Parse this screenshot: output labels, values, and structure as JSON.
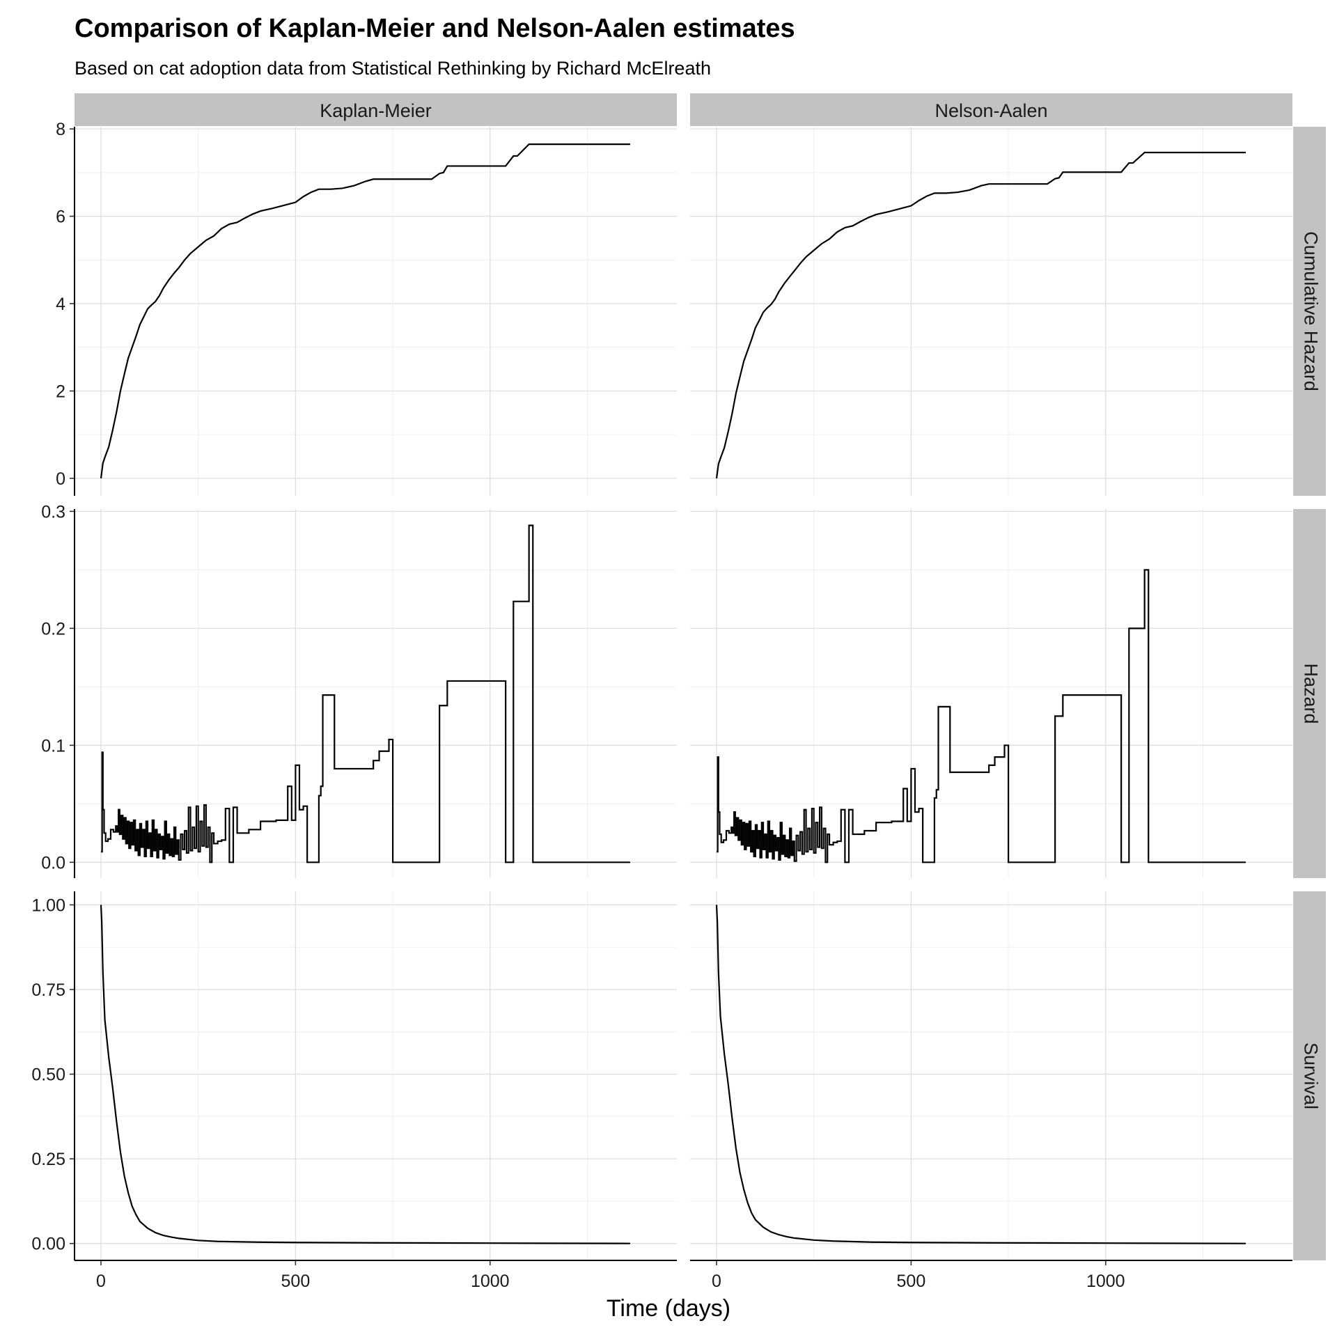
{
  "chart_data": {
    "type": "line",
    "title": "Comparison of Kaplan-Meier and Nelson-Aalen estimates",
    "subtitle": "Based on cat adoption data from Statistical Rethinking by Richard McElreath",
    "xlabel": "Time (days)",
    "ylabel": "",
    "columns": [
      "Kaplan-Meier",
      "Nelson-Aalen"
    ],
    "rows": [
      {
        "label": "Cumulative Hazard",
        "ylim": [
          -0.4,
          8.05
        ],
        "yticks": [
          0,
          2,
          4,
          6,
          8
        ],
        "ytick_labels": [
          "0",
          "2",
          "4",
          "6",
          "8"
        ]
      },
      {
        "label": "Hazard",
        "ylim": [
          -0.0135,
          0.302
        ],
        "yticks": [
          0,
          0.1,
          0.2,
          0.3
        ],
        "ytick_labels": [
          "0.0",
          "0.1",
          "0.2",
          "0.3"
        ]
      },
      {
        "label": "Survival",
        "ylim": [
          -0.05,
          1.04
        ],
        "yticks": [
          0,
          0.25,
          0.5,
          0.75,
          1.0
        ],
        "ytick_labels": [
          "0.00",
          "0.25",
          "0.50",
          "0.75",
          "1.00"
        ]
      }
    ],
    "xlim": [
      -68,
      1480
    ],
    "xticks": [
      0,
      500,
      1000
    ],
    "xtick_labels": [
      "0",
      "500",
      "1000"
    ],
    "grid": true,
    "series": [
      {
        "panel": "Kaplan-Meier / Cumulative Hazard",
        "step": false,
        "x": [
          0,
          5,
          10,
          20,
          30,
          40,
          50,
          60,
          70,
          80,
          90,
          100,
          110,
          120,
          130,
          140,
          150,
          160,
          175,
          190,
          200,
          215,
          230,
          250,
          270,
          290,
          310,
          330,
          350,
          370,
          390,
          410,
          440,
          470,
          500,
          520,
          540,
          560,
          590,
          620,
          650,
          680,
          700,
          720,
          750,
          800,
          850,
          870,
          880,
          890,
          900,
          1000,
          1040,
          1060,
          1070,
          1100,
          1110,
          1250,
          1360
        ],
        "y": [
          0,
          0.35,
          0.48,
          0.72,
          1.1,
          1.52,
          2.0,
          2.38,
          2.75,
          3.0,
          3.25,
          3.52,
          3.7,
          3.88,
          3.97,
          4.05,
          4.18,
          4.35,
          4.55,
          4.72,
          4.82,
          5.0,
          5.15,
          5.3,
          5.45,
          5.55,
          5.72,
          5.82,
          5.86,
          5.96,
          6.05,
          6.12,
          6.18,
          6.25,
          6.32,
          6.45,
          6.55,
          6.62,
          6.62,
          6.64,
          6.7,
          6.8,
          6.85,
          6.85,
          6.85,
          6.85,
          6.85,
          6.98,
          7.0,
          7.15,
          7.15,
          7.15,
          7.15,
          7.38,
          7.38,
          7.65,
          7.65,
          7.65,
          7.65
        ]
      },
      {
        "panel": "Nelson-Aalen / Cumulative Hazard",
        "step": false,
        "x": [
          0,
          5,
          10,
          20,
          30,
          40,
          50,
          60,
          70,
          80,
          90,
          100,
          110,
          120,
          130,
          140,
          150,
          160,
          175,
          190,
          200,
          215,
          230,
          250,
          270,
          290,
          310,
          330,
          350,
          370,
          390,
          410,
          440,
          470,
          500,
          520,
          540,
          560,
          590,
          620,
          650,
          680,
          700,
          720,
          750,
          800,
          850,
          870,
          880,
          890,
          900,
          1000,
          1040,
          1060,
          1070,
          1100,
          1110,
          1250,
          1360
        ],
        "y": [
          0,
          0.33,
          0.46,
          0.7,
          1.07,
          1.48,
          1.95,
          2.32,
          2.68,
          2.93,
          3.18,
          3.45,
          3.62,
          3.8,
          3.9,
          3.98,
          4.1,
          4.27,
          4.47,
          4.64,
          4.75,
          4.92,
          5.07,
          5.22,
          5.37,
          5.48,
          5.64,
          5.74,
          5.78,
          5.88,
          5.97,
          6.04,
          6.1,
          6.17,
          6.24,
          6.36,
          6.46,
          6.53,
          6.53,
          6.55,
          6.6,
          6.7,
          6.74,
          6.74,
          6.74,
          6.74,
          6.74,
          6.86,
          6.88,
          7.01,
          7.01,
          7.01,
          7.01,
          7.22,
          7.22,
          7.46,
          7.46,
          7.46,
          7.46
        ]
      },
      {
        "panel": "Kaplan-Meier / Hazard",
        "step": true,
        "x": [
          0,
          3,
          5,
          8,
          12,
          18,
          25,
          32,
          38,
          42,
          45,
          48,
          52,
          56,
          60,
          64,
          68,
          72,
          76,
          80,
          84,
          88,
          92,
          96,
          100,
          104,
          108,
          112,
          116,
          120,
          124,
          128,
          132,
          136,
          140,
          144,
          148,
          152,
          156,
          160,
          164,
          168,
          172,
          176,
          180,
          184,
          188,
          192,
          196,
          200,
          205,
          210,
          215,
          220,
          225,
          230,
          235,
          240,
          245,
          250,
          255,
          260,
          265,
          270,
          275,
          280,
          285,
          290,
          300,
          310,
          320,
          330,
          340,
          350,
          380,
          410,
          450,
          480,
          490,
          500,
          510,
          520,
          530,
          560,
          565,
          570,
          600,
          700,
          715,
          740,
          750,
          870,
          890,
          1040,
          1060,
          1100,
          1110,
          1360
        ],
        "y": [
          0.009,
          0.094,
          0.045,
          0.025,
          0.018,
          0.02,
          0.028,
          0.026,
          0.031,
          0.026,
          0.045,
          0.024,
          0.04,
          0.02,
          0.038,
          0.016,
          0.035,
          0.012,
          0.034,
          0.015,
          0.036,
          0.01,
          0.028,
          0.006,
          0.033,
          0.013,
          0.028,
          0.005,
          0.035,
          0.012,
          0.025,
          0.005,
          0.036,
          0.01,
          0.028,
          0.004,
          0.024,
          0.011,
          0.022,
          0.003,
          0.035,
          0.008,
          0.024,
          0.006,
          0.02,
          0.005,
          0.03,
          0.007,
          0.019,
          0.002,
          0.024,
          0.011,
          0.027,
          0.008,
          0.047,
          0.01,
          0.03,
          0.012,
          0.048,
          0.009,
          0.035,
          0.014,
          0.049,
          0.013,
          0.03,
          0.0,
          0.025,
          0.016,
          0.018,
          0.019,
          0.046,
          0.0,
          0.047,
          0.025,
          0.028,
          0.035,
          0.036,
          0.065,
          0.036,
          0.083,
          0.045,
          0.048,
          0.0,
          0.057,
          0.065,
          0.143,
          0.08,
          0.087,
          0.095,
          0.105,
          0.0,
          0.134,
          0.155,
          0.0,
          0.223,
          0.288,
          0.0,
          0.0
        ]
      },
      {
        "panel": "Nelson-Aalen / Hazard",
        "step": true,
        "x": [
          0,
          3,
          5,
          8,
          12,
          18,
          25,
          32,
          38,
          42,
          45,
          48,
          52,
          56,
          60,
          64,
          68,
          72,
          76,
          80,
          84,
          88,
          92,
          96,
          100,
          104,
          108,
          112,
          116,
          120,
          124,
          128,
          132,
          136,
          140,
          144,
          148,
          152,
          156,
          160,
          164,
          168,
          172,
          176,
          180,
          184,
          188,
          192,
          196,
          200,
          205,
          210,
          215,
          220,
          225,
          230,
          235,
          240,
          245,
          250,
          255,
          260,
          265,
          270,
          275,
          280,
          285,
          290,
          300,
          310,
          320,
          330,
          340,
          350,
          380,
          410,
          450,
          480,
          490,
          500,
          510,
          520,
          530,
          560,
          565,
          570,
          600,
          700,
          715,
          740,
          750,
          870,
          890,
          1040,
          1060,
          1100,
          1110,
          1360
        ],
        "y": [
          0.009,
          0.09,
          0.043,
          0.024,
          0.017,
          0.019,
          0.027,
          0.025,
          0.03,
          0.025,
          0.043,
          0.023,
          0.038,
          0.019,
          0.036,
          0.015,
          0.034,
          0.011,
          0.033,
          0.014,
          0.035,
          0.009,
          0.027,
          0.005,
          0.032,
          0.012,
          0.027,
          0.004,
          0.034,
          0.011,
          0.024,
          0.004,
          0.035,
          0.009,
          0.027,
          0.003,
          0.023,
          0.01,
          0.021,
          0.002,
          0.034,
          0.007,
          0.023,
          0.005,
          0.019,
          0.004,
          0.029,
          0.006,
          0.018,
          0.001,
          0.023,
          0.01,
          0.026,
          0.007,
          0.045,
          0.009,
          0.029,
          0.011,
          0.046,
          0.008,
          0.034,
          0.013,
          0.047,
          0.012,
          0.029,
          0.0,
          0.024,
          0.015,
          0.017,
          0.018,
          0.045,
          0.0,
          0.045,
          0.024,
          0.027,
          0.034,
          0.035,
          0.063,
          0.035,
          0.08,
          0.043,
          0.046,
          0.0,
          0.055,
          0.062,
          0.133,
          0.077,
          0.083,
          0.09,
          0.1,
          0.0,
          0.125,
          0.143,
          0.0,
          0.2,
          0.25,
          0.0,
          0.0
        ]
      },
      {
        "panel": "Kaplan-Meier / Survival",
        "step": false,
        "x": [
          0,
          2,
          5,
          10,
          20,
          30,
          40,
          50,
          60,
          70,
          80,
          90,
          100,
          120,
          140,
          160,
          180,
          200,
          250,
          300,
          400,
          500,
          700,
          1000,
          1360
        ],
        "y": [
          1.0,
          0.95,
          0.8,
          0.66,
          0.55,
          0.46,
          0.36,
          0.27,
          0.2,
          0.15,
          0.11,
          0.085,
          0.065,
          0.045,
          0.032,
          0.024,
          0.019,
          0.015,
          0.009,
          0.006,
          0.004,
          0.003,
          0.002,
          0.001,
          0.0
        ]
      },
      {
        "panel": "Nelson-Aalen / Survival",
        "step": false,
        "x": [
          0,
          2,
          5,
          10,
          20,
          30,
          40,
          50,
          60,
          70,
          80,
          90,
          100,
          120,
          140,
          160,
          180,
          200,
          250,
          300,
          400,
          500,
          700,
          1000,
          1360
        ],
        "y": [
          1.0,
          0.95,
          0.8,
          0.67,
          0.56,
          0.47,
          0.37,
          0.28,
          0.21,
          0.16,
          0.12,
          0.09,
          0.07,
          0.048,
          0.034,
          0.026,
          0.02,
          0.016,
          0.01,
          0.007,
          0.004,
          0.003,
          0.002,
          0.001,
          0.0
        ]
      }
    ]
  },
  "colors": {
    "strip_background": "#c2c2c2",
    "grid_major": "#dedede",
    "grid_minor": "#efefef",
    "axis_line": "#000000",
    "series_line": "#000000"
  }
}
